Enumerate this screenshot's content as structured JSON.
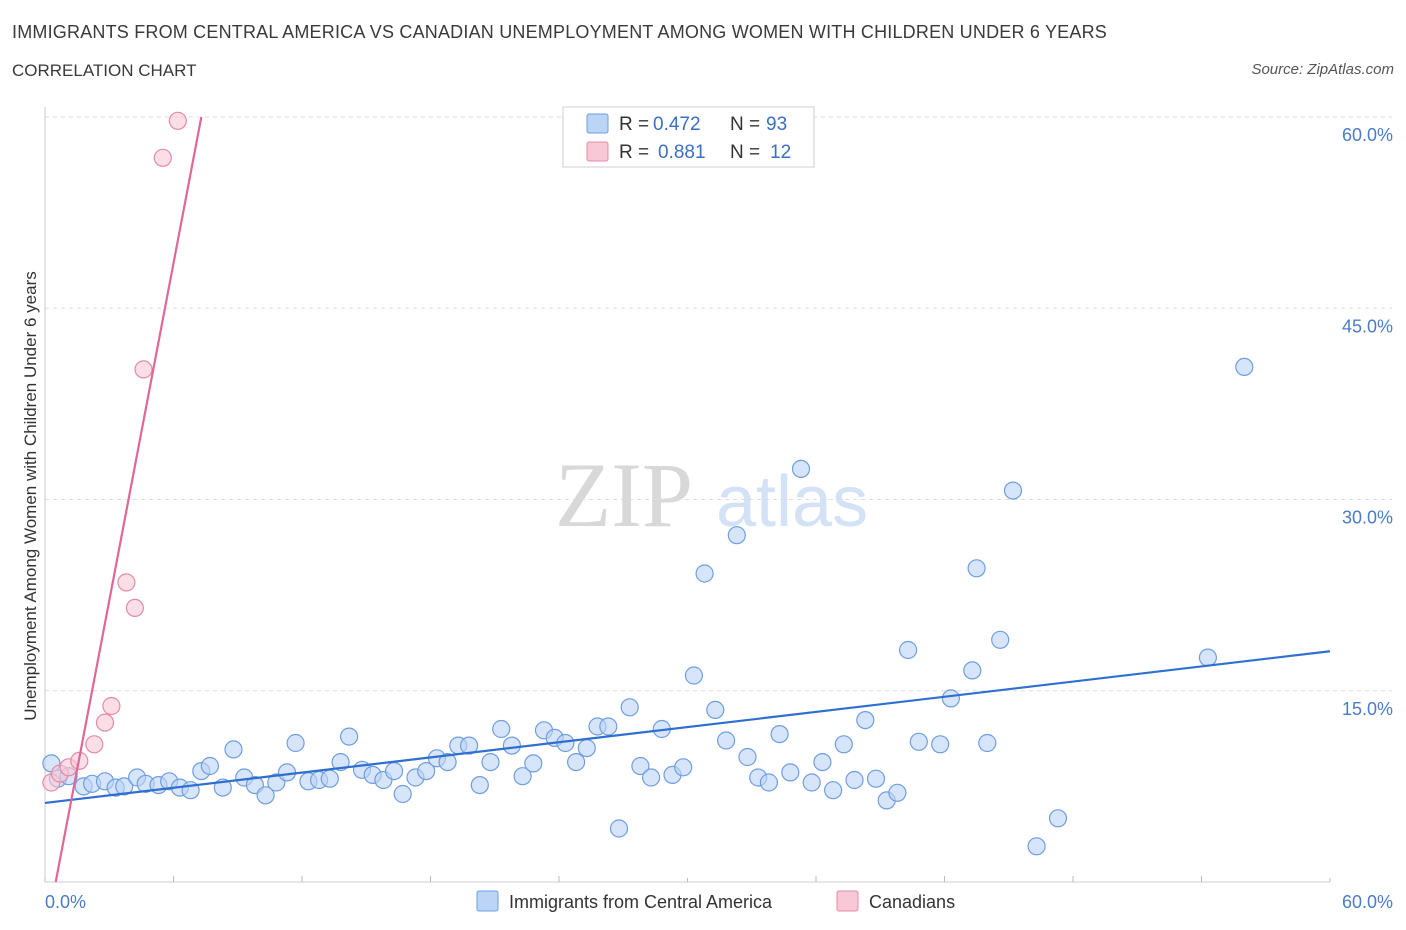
{
  "header": {
    "title": "IMMIGRANTS FROM CENTRAL AMERICA VS CANADIAN UNEMPLOYMENT AMONG WOMEN WITH CHILDREN UNDER 6 YEARS",
    "subtitle": "CORRELATION CHART",
    "source": "Source: ZipAtlas.com"
  },
  "watermark": {
    "zip": "ZIP",
    "atlas": "atlas"
  },
  "colors": {
    "blue_fill": "#bcd4f6",
    "blue_stroke": "#6f9ee0",
    "blue_line": "#2f6fd0",
    "pink_fill": "#f8c8d6",
    "pink_stroke": "#e58aa8",
    "pink_line": "#e0679a",
    "tick_text": "#4a7cc9",
    "grid": "#dcdcdc"
  },
  "legend_box": {
    "rows": [
      {
        "r_label": "R =",
        "r_value": "0.472",
        "n_label": "N =",
        "n_value": "93",
        "color": "blue"
      },
      {
        "r_label": "R =",
        "r_value": "0.881",
        "n_label": "N =",
        "n_value": "12",
        "color": "pink"
      }
    ]
  },
  "chart_data": {
    "type": "scatter",
    "xlabel": "",
    "ylabel": "Unemployment Among Women with Children Under 6 years",
    "xlim": [
      0,
      60
    ],
    "ylim": [
      0,
      60
    ],
    "x_tick_labels": [
      "0.0%",
      "60.0%"
    ],
    "y_tick_labels": [
      "15.0%",
      "30.0%",
      "45.0%",
      "60.0%"
    ],
    "y_ticks": [
      15,
      30,
      45,
      60
    ],
    "grid": true,
    "legend_position": "bottom",
    "series": [
      {
        "name": "Immigrants from Central America",
        "color": "blue",
        "trend": {
          "x": [
            0,
            60
          ],
          "y": [
            6.2,
            18.1
          ]
        },
        "points": [
          [
            0.3,
            9.3
          ],
          [
            0.6,
            8.1
          ],
          [
            1.1,
            8.3
          ],
          [
            1.8,
            7.5
          ],
          [
            2.2,
            7.7
          ],
          [
            2.8,
            7.9
          ],
          [
            3.3,
            7.4
          ],
          [
            3.7,
            7.5
          ],
          [
            4.3,
            8.2
          ],
          [
            4.7,
            7.7
          ],
          [
            5.3,
            7.6
          ],
          [
            5.8,
            7.9
          ],
          [
            6.3,
            7.4
          ],
          [
            6.8,
            7.2
          ],
          [
            7.3,
            8.7
          ],
          [
            7.7,
            9.1
          ],
          [
            8.3,
            7.4
          ],
          [
            8.8,
            10.4
          ],
          [
            9.3,
            8.2
          ],
          [
            9.8,
            7.6
          ],
          [
            10.3,
            6.8
          ],
          [
            10.8,
            7.8
          ],
          [
            11.3,
            8.6
          ],
          [
            11.7,
            10.9
          ],
          [
            12.3,
            7.9
          ],
          [
            12.8,
            8.0
          ],
          [
            13.3,
            8.1
          ],
          [
            13.8,
            9.4
          ],
          [
            14.2,
            11.4
          ],
          [
            14.8,
            8.8
          ],
          [
            15.3,
            8.4
          ],
          [
            15.8,
            8.0
          ],
          [
            16.3,
            8.7
          ],
          [
            16.7,
            6.9
          ],
          [
            17.3,
            8.2
          ],
          [
            17.8,
            8.7
          ],
          [
            18.3,
            9.7
          ],
          [
            18.8,
            9.4
          ],
          [
            19.3,
            10.7
          ],
          [
            19.8,
            10.7
          ],
          [
            20.3,
            7.6
          ],
          [
            20.8,
            9.4
          ],
          [
            21.3,
            12.0
          ],
          [
            21.8,
            10.7
          ],
          [
            22.3,
            8.3
          ],
          [
            22.8,
            9.3
          ],
          [
            23.3,
            11.9
          ],
          [
            23.8,
            11.3
          ],
          [
            24.3,
            10.9
          ],
          [
            24.8,
            9.4
          ],
          [
            25.3,
            10.5
          ],
          [
            25.8,
            12.2
          ],
          [
            26.3,
            12.2
          ],
          [
            26.8,
            4.2
          ],
          [
            27.3,
            13.7
          ],
          [
            27.8,
            9.1
          ],
          [
            28.3,
            8.2
          ],
          [
            28.8,
            12.0
          ],
          [
            29.3,
            8.4
          ],
          [
            29.8,
            9.0
          ],
          [
            30.3,
            16.2
          ],
          [
            30.8,
            24.2
          ],
          [
            31.3,
            13.5
          ],
          [
            31.8,
            11.1
          ],
          [
            32.3,
            27.2
          ],
          [
            32.8,
            9.8
          ],
          [
            33.3,
            8.2
          ],
          [
            33.8,
            7.8
          ],
          [
            34.3,
            11.6
          ],
          [
            34.8,
            8.6
          ],
          [
            35.3,
            32.4
          ],
          [
            35.8,
            7.8
          ],
          [
            36.3,
            9.4
          ],
          [
            36.8,
            7.2
          ],
          [
            37.3,
            10.8
          ],
          [
            37.8,
            8.0
          ],
          [
            38.3,
            12.7
          ],
          [
            38.8,
            8.1
          ],
          [
            39.3,
            6.4
          ],
          [
            39.8,
            7.0
          ],
          [
            40.3,
            18.2
          ],
          [
            40.8,
            11.0
          ],
          [
            41.8,
            10.8
          ],
          [
            42.3,
            14.4
          ],
          [
            43.3,
            16.6
          ],
          [
            43.5,
            24.6
          ],
          [
            44.0,
            10.9
          ],
          [
            44.6,
            19.0
          ],
          [
            45.2,
            30.7
          ],
          [
            46.3,
            2.8
          ],
          [
            47.3,
            5.0
          ],
          [
            54.3,
            17.6
          ],
          [
            56.0,
            40.4
          ]
        ]
      },
      {
        "name": "Canadians",
        "color": "pink",
        "trend": {
          "x": [
            0.5,
            7.3
          ],
          "y": [
            0,
            60
          ]
        },
        "points": [
          [
            0.3,
            7.8
          ],
          [
            0.7,
            8.5
          ],
          [
            1.1,
            9.0
          ],
          [
            1.6,
            9.5
          ],
          [
            2.3,
            10.8
          ],
          [
            2.8,
            12.5
          ],
          [
            3.1,
            13.8
          ],
          [
            3.8,
            23.5
          ],
          [
            4.2,
            21.5
          ],
          [
            4.6,
            40.2
          ],
          [
            5.5,
            56.8
          ],
          [
            6.2,
            59.7
          ]
        ]
      }
    ]
  },
  "bottom_legend": {
    "items": [
      {
        "label": "Immigrants from Central America",
        "color": "blue"
      },
      {
        "label": "Canadians",
        "color": "pink"
      }
    ]
  }
}
